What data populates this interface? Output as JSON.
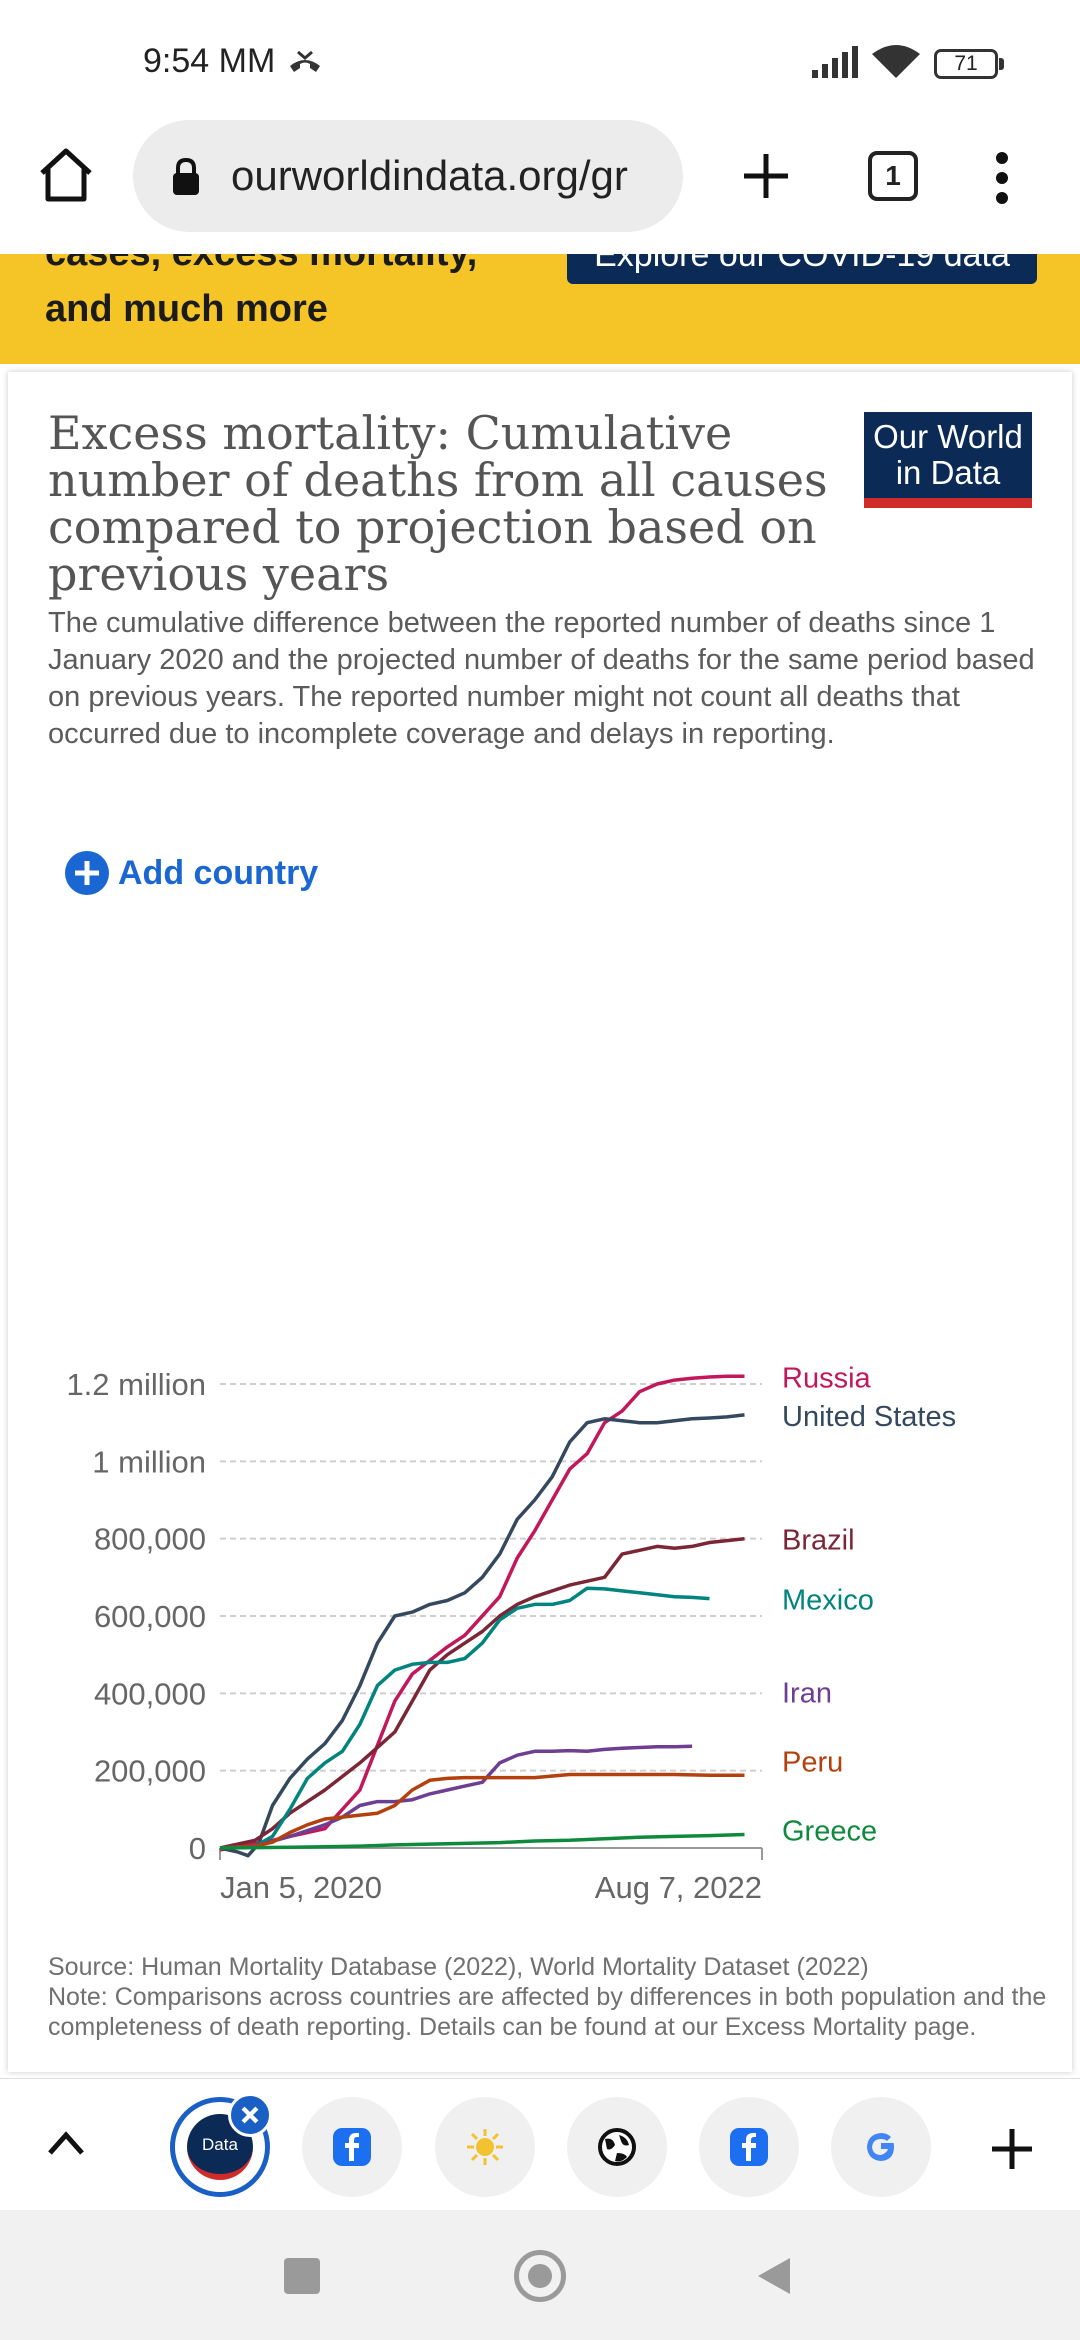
{
  "status": {
    "time": "9:54 MM",
    "battery": "71"
  },
  "browser": {
    "url": "ourworldindata.org/gr",
    "tab_count": "1"
  },
  "banner": {
    "partial_text": "cases, excess mortality,",
    "text": "and much more",
    "button_label": "Explore our COVID-19 data"
  },
  "card": {
    "title": "Excess mortality: Cumulative number of deaths from all causes compared to projection based on previous years",
    "subtitle": "The cumulative difference between the reported number of deaths since 1 January 2020 and the projected number of deaths for the same period based on previous years. The reported number might not count all deaths that occurred due to incomplete coverage and delays in reporting.",
    "logo_line1": "Our World",
    "logo_line2": "in Data",
    "add_country_label": "Add country",
    "source_note": "Source: Human Mortality Database (2022), World Mortality Dataset (2022)\nNote: Comparisons across countries are affected by differences in both population and the completeness of death reporting. Details can be found at our Excess Mortality page."
  },
  "tabs": {
    "active_label": "Data"
  },
  "colors": {
    "russia": "#c2185b",
    "united_states": "#34495e",
    "brazil": "#7b2636",
    "mexico": "#00847e",
    "iran": "#6d3e91",
    "peru": "#b3400d",
    "greece": "#0f8a3c",
    "accent": "#1a67d3",
    "banner": "#f5c527"
  },
  "chart_data": {
    "type": "line",
    "title": "Excess mortality: Cumulative number of deaths from all causes compared to projection based on previous years",
    "x_start": 0,
    "x_end": 31,
    "x_unit": "months since Jan 5, 2020",
    "x_tick_labels": [
      "Jan 5, 2020",
      "Aug 7, 2022"
    ],
    "ylim": [
      0,
      1200000
    ],
    "y_ticks": [
      0,
      200000,
      400000,
      600000,
      800000,
      1000000,
      1200000
    ],
    "y_tick_labels": [
      "0",
      "200,000",
      "400,000",
      "600,000",
      "800,000",
      "1 million",
      "1.2 million"
    ],
    "xlabel": "",
    "ylabel": "",
    "series": [
      {
        "name": "Russia",
        "key": "russia",
        "x": [
          0,
          3,
          4,
          6,
          8,
          10,
          11,
          13,
          14,
          16,
          17,
          18,
          20,
          21,
          22,
          23,
          24,
          25,
          26,
          27,
          28,
          29,
          30
        ],
        "values": [
          -5000,
          20000,
          30000,
          50000,
          150000,
          380000,
          450000,
          520000,
          550000,
          650000,
          750000,
          820000,
          980000,
          1020000,
          1100000,
          1130000,
          1180000,
          1200000,
          1210000,
          1215000,
          1218000,
          1220000,
          1220000
        ]
      },
      {
        "name": "United States",
        "key": "united_states",
        "x": [
          0,
          1,
          1.6,
          2.2,
          3,
          4,
          5,
          6,
          7,
          8,
          9,
          10,
          11,
          12,
          13,
          14,
          15,
          16,
          17,
          18,
          19,
          20,
          21,
          22,
          23,
          24,
          25,
          26,
          27,
          28,
          29,
          30
        ],
        "values": [
          0,
          -10000,
          -20000,
          10000,
          110000,
          180000,
          230000,
          270000,
          330000,
          420000,
          530000,
          600000,
          610000,
          630000,
          640000,
          660000,
          700000,
          760000,
          850000,
          900000,
          960000,
          1050000,
          1100000,
          1110000,
          1105000,
          1100000,
          1100000,
          1105000,
          1110000,
          1112000,
          1115000,
          1120000
        ]
      },
      {
        "name": "Brazil",
        "key": "brazil",
        "x": [
          0,
          2,
          3,
          4,
          6,
          8,
          9,
          10,
          11,
          12,
          13,
          14,
          15,
          16,
          17,
          18,
          20,
          22,
          23,
          24,
          25,
          26,
          27,
          28,
          29,
          30
        ],
        "values": [
          0,
          20000,
          50000,
          90000,
          150000,
          220000,
          260000,
          300000,
          380000,
          460000,
          500000,
          530000,
          560000,
          600000,
          630000,
          650000,
          680000,
          700000,
          760000,
          770000,
          780000,
          775000,
          780000,
          790000,
          795000,
          800000
        ]
      },
      {
        "name": "Mexico",
        "key": "mexico",
        "x": [
          0,
          2,
          3,
          4,
          5,
          6,
          7,
          8,
          9,
          10,
          11,
          12,
          13,
          14,
          15,
          16,
          17,
          18,
          19,
          20,
          21,
          22,
          23,
          24,
          25,
          26,
          27,
          28
        ],
        "values": [
          0,
          5000,
          30000,
          100000,
          180000,
          220000,
          250000,
          320000,
          420000,
          460000,
          475000,
          480000,
          480000,
          490000,
          530000,
          590000,
          620000,
          630000,
          630000,
          640000,
          672000,
          670000,
          665000,
          660000,
          655000,
          650000,
          648000,
          645000
        ]
      },
      {
        "name": "Iran",
        "key": "iran",
        "x": [
          0,
          2,
          4,
          6,
          7,
          8,
          9,
          10,
          11,
          12,
          13,
          14,
          15,
          16,
          17,
          18,
          19,
          20,
          21,
          22,
          23,
          24,
          25,
          26,
          27
        ],
        "values": [
          0,
          5000,
          30000,
          60000,
          80000,
          110000,
          120000,
          120000,
          125000,
          140000,
          150000,
          160000,
          170000,
          220000,
          240000,
          250000,
          250000,
          252000,
          250000,
          255000,
          258000,
          260000,
          262000,
          262000,
          263000
        ]
      },
      {
        "name": "Peru",
        "key": "peru",
        "x": [
          0,
          2,
          3,
          4,
          5,
          6,
          7,
          8,
          9,
          10,
          11,
          12,
          13,
          14,
          15,
          16,
          18,
          20,
          21,
          22,
          24,
          26,
          28,
          30
        ],
        "values": [
          0,
          5000,
          15000,
          40000,
          60000,
          75000,
          80000,
          85000,
          90000,
          110000,
          150000,
          175000,
          180000,
          182000,
          182000,
          182000,
          182000,
          190000,
          190000,
          190000,
          190000,
          190000,
          188000,
          188000
        ]
      },
      {
        "name": "Greece",
        "key": "greece",
        "x": [
          0,
          2,
          4,
          6,
          8,
          10,
          12,
          14,
          16,
          18,
          20,
          22,
          24,
          26,
          28,
          30
        ],
        "values": [
          0,
          1000,
          2000,
          3000,
          5000,
          8000,
          10000,
          12000,
          14000,
          18000,
          20000,
          24000,
          28000,
          30000,
          32000,
          35000
        ]
      }
    ]
  }
}
